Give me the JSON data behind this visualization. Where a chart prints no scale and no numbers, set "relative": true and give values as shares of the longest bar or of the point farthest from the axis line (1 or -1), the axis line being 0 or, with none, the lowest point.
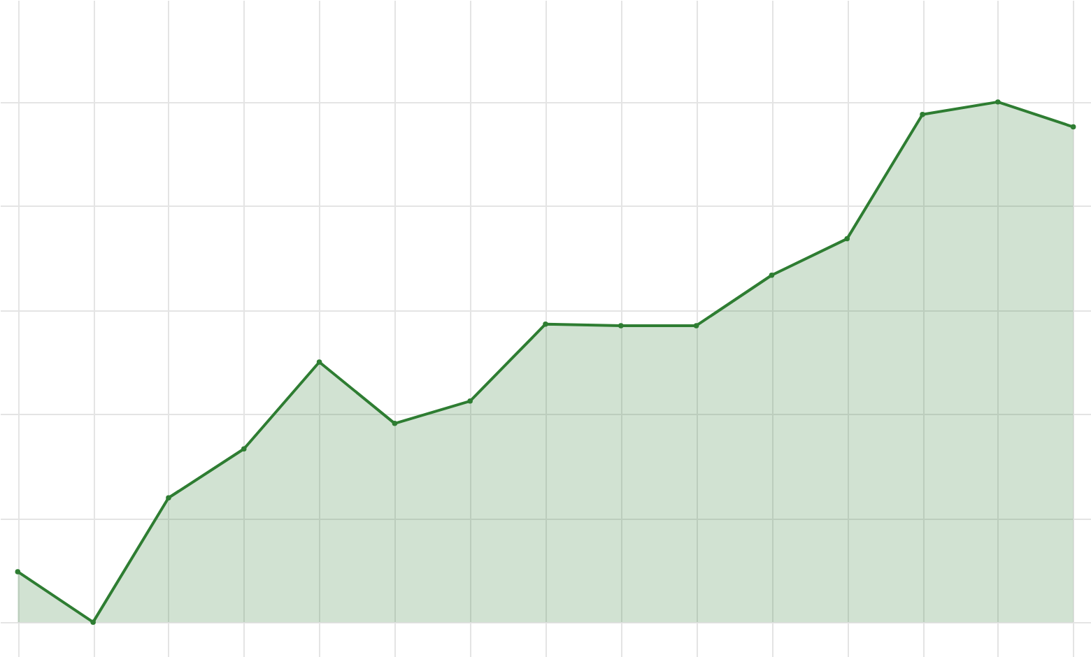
{
  "chart_data": {
    "type": "area",
    "relative": true,
    "categories": [
      null,
      null,
      null,
      null,
      null,
      null,
      null,
      null,
      null,
      null,
      null,
      null,
      null,
      null,
      null
    ],
    "series": [
      {
        "color": "#2e7d32",
        "values": [
          0.097,
          0,
          0.239,
          0.333,
          0.5,
          0.382,
          0.425,
          0.573,
          0.57,
          0.57,
          0.667,
          0.737,
          0.976,
          1,
          0.952
        ]
      }
    ],
    "grid": true,
    "marker": "circle"
  }
}
